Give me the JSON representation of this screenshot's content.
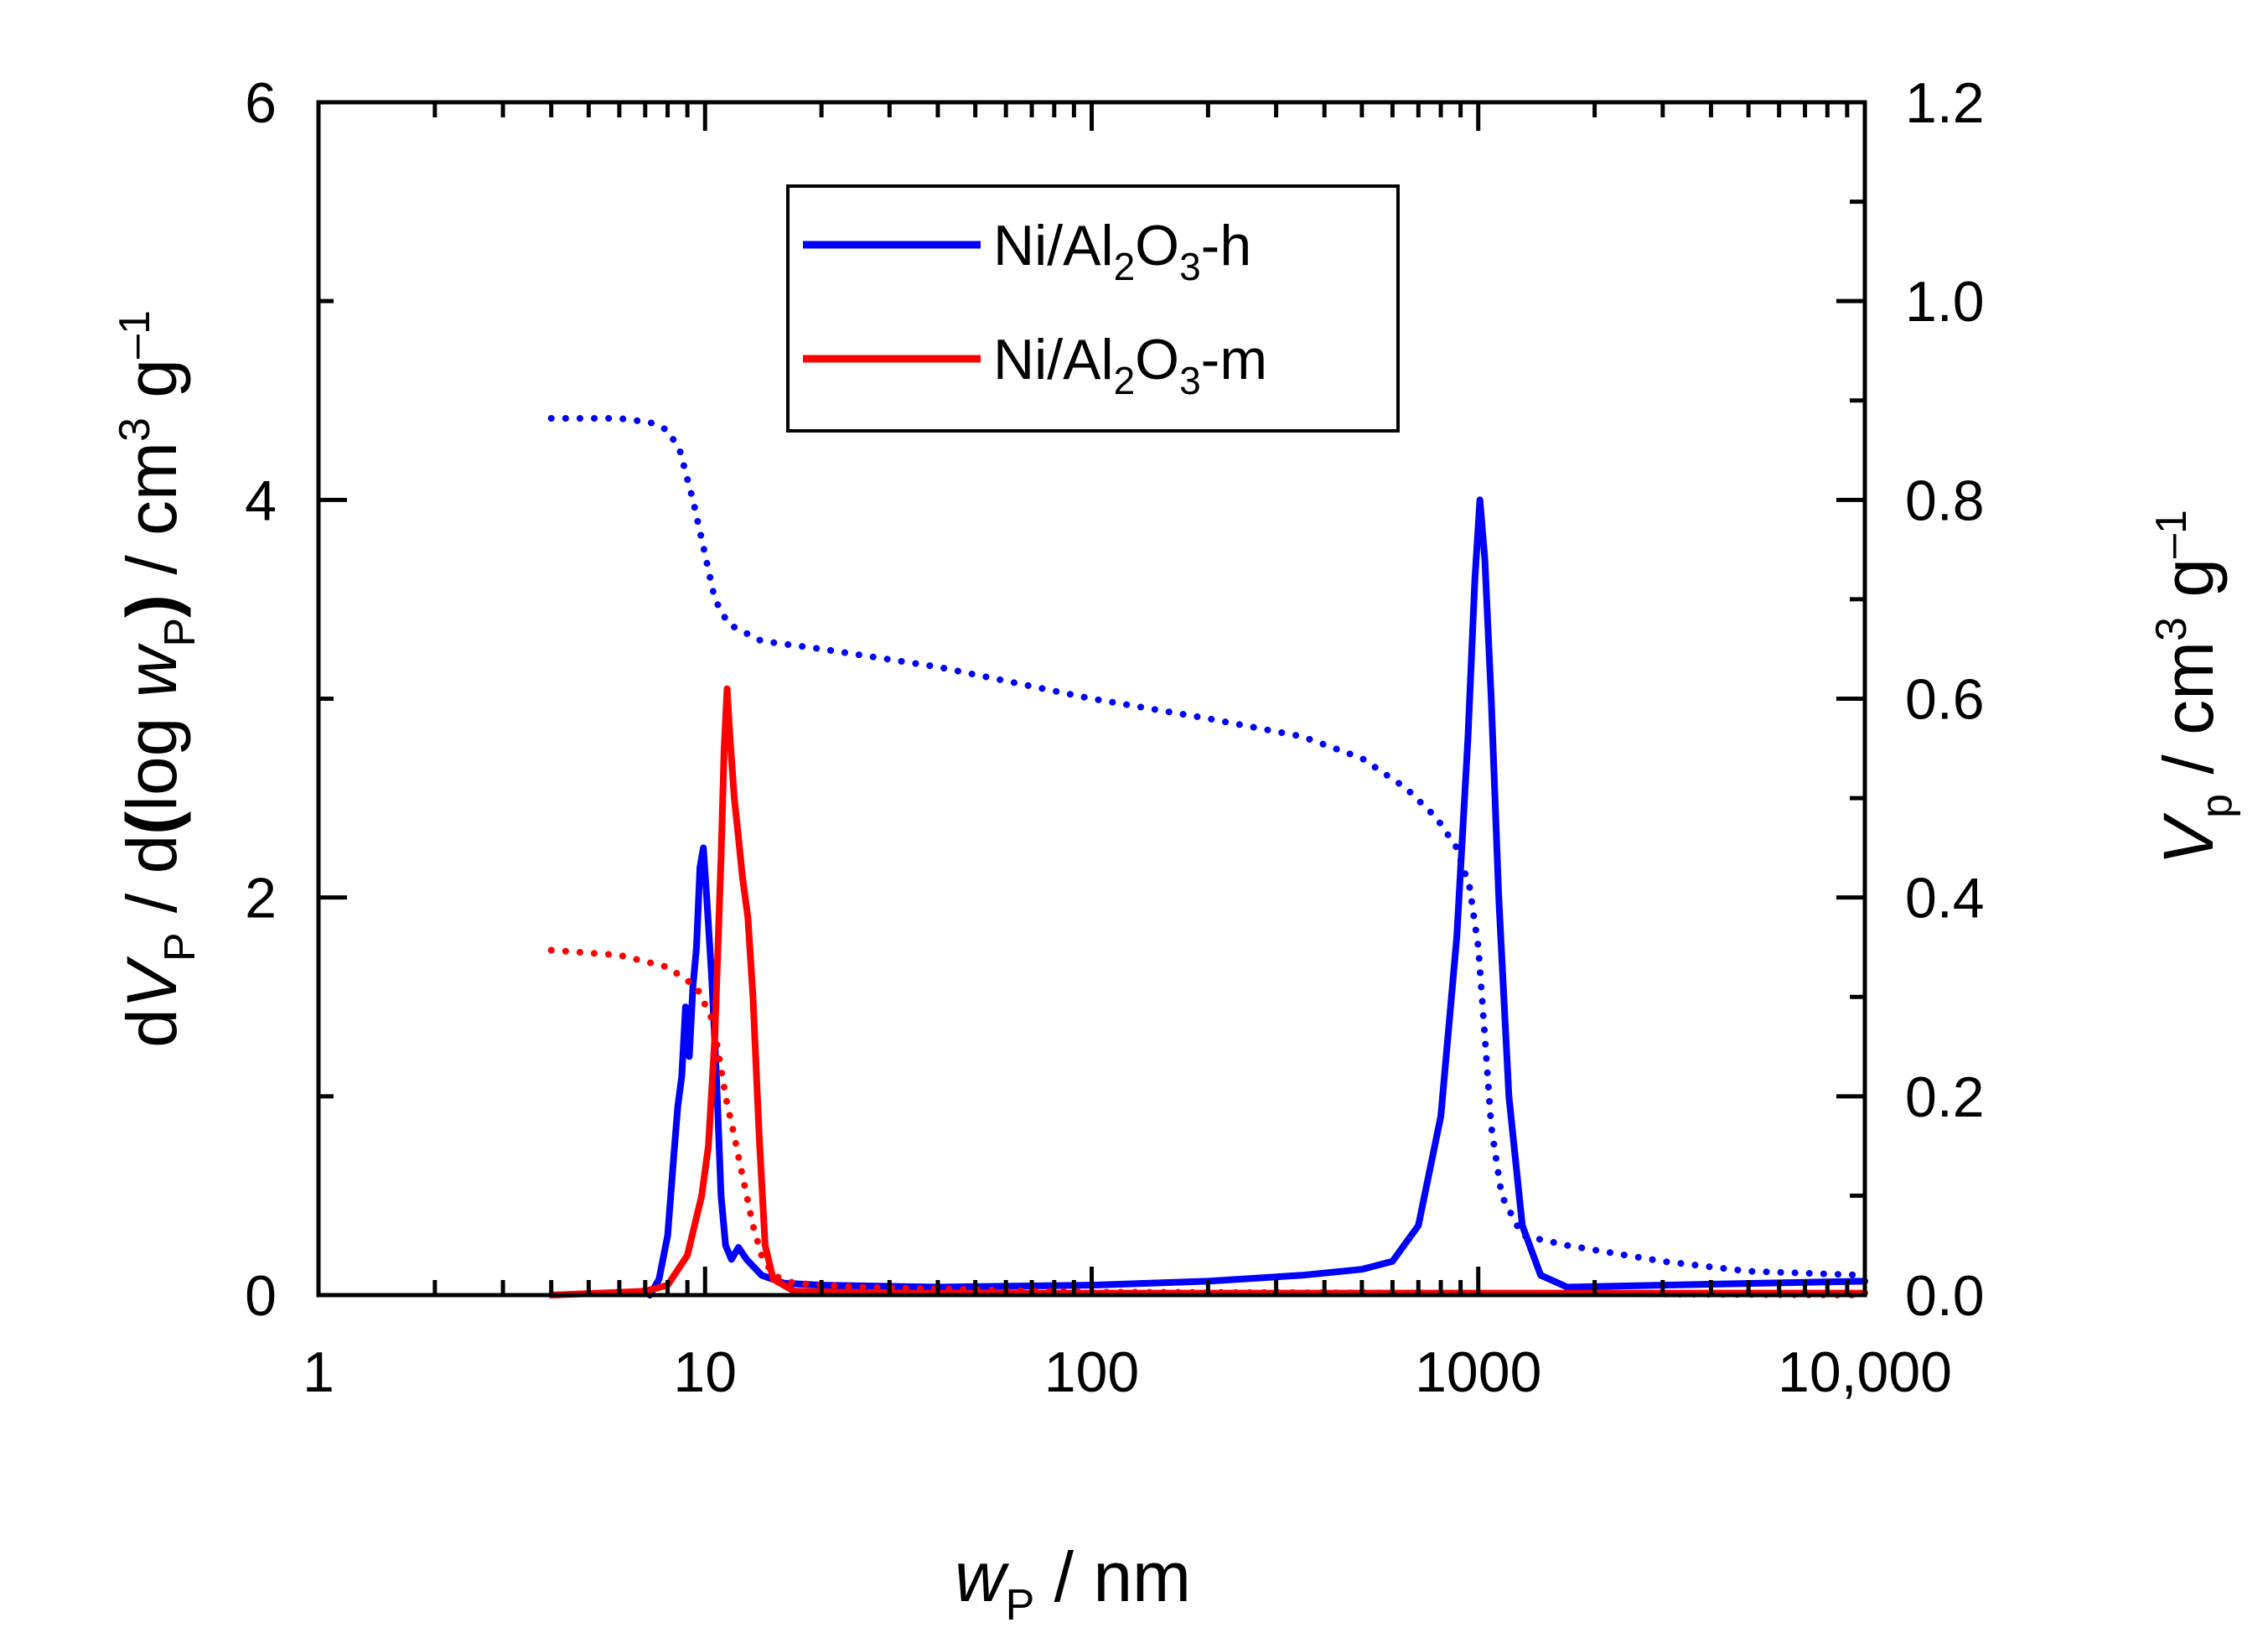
{
  "chart_data": {
    "type": "line",
    "x_scale": "log",
    "xlim": [
      1,
      10000
    ],
    "ylim_left": [
      0,
      6
    ],
    "ylim_right": [
      0,
      1.2
    ],
    "x_ticks": [
      1,
      10,
      100,
      1000,
      10000
    ],
    "x_tick_labels": [
      "1",
      "10",
      "100",
      "1000",
      "10,000"
    ],
    "y_left_ticks": [
      0,
      2,
      4,
      6
    ],
    "y_left_tick_labels": [
      "0",
      "2",
      "4",
      "6"
    ],
    "y_right_ticks": [
      0,
      0.2,
      0.4,
      0.6,
      0.8,
      1.0,
      1.2
    ],
    "y_right_tick_labels": [
      "0.0",
      "0.2",
      "0.4",
      "0.6",
      "0.8",
      "1.0",
      "1.2"
    ],
    "xlabel": {
      "main": "w",
      "sub": "P",
      "rest": " / nm"
    },
    "ylabel_left": {
      "p1": "d",
      "v": "V",
      "sub1": "P",
      "p2": " / d",
      "paren_open": "(",
      "log": "log ",
      "w": "w",
      "sub2": "P",
      "paren_close": ")",
      "unit": " / cm",
      "sup3": "3",
      "g": " g",
      "supm1": "–1"
    },
    "ylabel_right": {
      "v": "V",
      "sub": "p",
      "unit": " / cm",
      "sup3": "3",
      "g": " g",
      "supm1": "–1"
    },
    "legend": {
      "position": "top-center",
      "entries": [
        {
          "base": "Ni/Al",
          "s1": "2",
          "mid": "O",
          "s2": "3",
          "tail": "-h",
          "color": "#0000ff"
        },
        {
          "base": "Ni/Al",
          "s1": "2",
          "mid": "O",
          "s2": "3",
          "tail": "-m",
          "color": "#ff0000"
        }
      ]
    },
    "series": [
      {
        "name": "Ni/Al2O3-h dV/dlogw",
        "axis": "left",
        "style": "solid",
        "color": "#0000ff",
        "points": [
          [
            7.2,
            0.0
          ],
          [
            7.6,
            0.08
          ],
          [
            8.0,
            0.3
          ],
          [
            8.3,
            0.7
          ],
          [
            8.5,
            0.95
          ],
          [
            8.7,
            1.1
          ],
          [
            8.9,
            1.45
          ],
          [
            9.1,
            1.2
          ],
          [
            9.3,
            1.55
          ],
          [
            9.5,
            1.75
          ],
          [
            9.7,
            2.15
          ],
          [
            9.9,
            2.25
          ],
          [
            10.1,
            2.0
          ],
          [
            10.4,
            1.6
          ],
          [
            10.7,
            1.1
          ],
          [
            11.0,
            0.5
          ],
          [
            11.3,
            0.25
          ],
          [
            11.7,
            0.18
          ],
          [
            12.2,
            0.24
          ],
          [
            12.8,
            0.18
          ],
          [
            14,
            0.1
          ],
          [
            16,
            0.06
          ],
          [
            20,
            0.05
          ],
          [
            40,
            0.04
          ],
          [
            100,
            0.05
          ],
          [
            200,
            0.07
          ],
          [
            350,
            0.1
          ],
          [
            500,
            0.13
          ],
          [
            600,
            0.17
          ],
          [
            700,
            0.35
          ],
          [
            800,
            0.9
          ],
          [
            880,
            1.8
          ],
          [
            940,
            2.8
          ],
          [
            980,
            3.6
          ],
          [
            1010,
            4.0
          ],
          [
            1040,
            3.7
          ],
          [
            1080,
            3.0
          ],
          [
            1130,
            2.0
          ],
          [
            1200,
            1.0
          ],
          [
            1300,
            0.35
          ],
          [
            1450,
            0.1
          ],
          [
            1700,
            0.04
          ],
          [
            3000,
            0.05
          ],
          [
            10000,
            0.07
          ]
        ]
      },
      {
        "name": "Ni/Al2O3-m dV/dlogw",
        "axis": "left",
        "style": "solid",
        "color": "#ff0000",
        "points": [
          [
            4,
            0.0
          ],
          [
            7,
            0.02
          ],
          [
            8,
            0.05
          ],
          [
            9,
            0.2
          ],
          [
            9.8,
            0.5
          ],
          [
            10.2,
            0.75
          ],
          [
            10.6,
            1.3
          ],
          [
            11.0,
            2.2
          ],
          [
            11.2,
            2.75
          ],
          [
            11.4,
            3.05
          ],
          [
            11.6,
            2.8
          ],
          [
            11.9,
            2.5
          ],
          [
            12.2,
            2.3
          ],
          [
            12.5,
            2.1
          ],
          [
            12.9,
            1.9
          ],
          [
            13.3,
            1.5
          ],
          [
            13.8,
            0.8
          ],
          [
            14.3,
            0.25
          ],
          [
            15,
            0.08
          ],
          [
            17,
            0.02
          ],
          [
            30,
            0.01
          ],
          [
            100,
            0.01
          ],
          [
            1000,
            0.01
          ],
          [
            10000,
            0.01
          ]
        ]
      },
      {
        "name": "Ni/Al2O3-h Vp",
        "axis": "right",
        "style": "dotted",
        "color": "#0000ff",
        "points": [
          [
            4,
            0.882
          ],
          [
            6,
            0.882
          ],
          [
            7.2,
            0.878
          ],
          [
            8,
            0.87
          ],
          [
            8.6,
            0.85
          ],
          [
            9.3,
            0.8
          ],
          [
            10,
            0.745
          ],
          [
            10.6,
            0.7
          ],
          [
            11.5,
            0.675
          ],
          [
            14,
            0.658
          ],
          [
            20,
            0.65
          ],
          [
            40,
            0.632
          ],
          [
            100,
            0.6
          ],
          [
            200,
            0.58
          ],
          [
            350,
            0.562
          ],
          [
            500,
            0.54
          ],
          [
            650,
            0.51
          ],
          [
            780,
            0.48
          ],
          [
            880,
            0.45
          ],
          [
            950,
            0.41
          ],
          [
            1000,
            0.35
          ],
          [
            1040,
            0.26
          ],
          [
            1080,
            0.17
          ],
          [
            1150,
            0.1
          ],
          [
            1300,
            0.06
          ],
          [
            1700,
            0.05
          ],
          [
            3000,
            0.034
          ],
          [
            5000,
            0.024
          ],
          [
            10000,
            0.02
          ]
        ]
      },
      {
        "name": "Ni/Al2O3-m Vp",
        "axis": "right",
        "style": "dotted",
        "color": "#ff0000",
        "points": [
          [
            4,
            0.347
          ],
          [
            6,
            0.342
          ],
          [
            8,
            0.33
          ],
          [
            9.5,
            0.31
          ],
          [
            10.5,
            0.275
          ],
          [
            11.3,
            0.2
          ],
          [
            11.9,
            0.16
          ],
          [
            12.5,
            0.12
          ],
          [
            13.3,
            0.07
          ],
          [
            14,
            0.04
          ],
          [
            15,
            0.02
          ],
          [
            17,
            0.012
          ],
          [
            25,
            0.008
          ],
          [
            100,
            0.003
          ],
          [
            1000,
            0.002
          ],
          [
            10000,
            0.0
          ]
        ]
      }
    ]
  }
}
